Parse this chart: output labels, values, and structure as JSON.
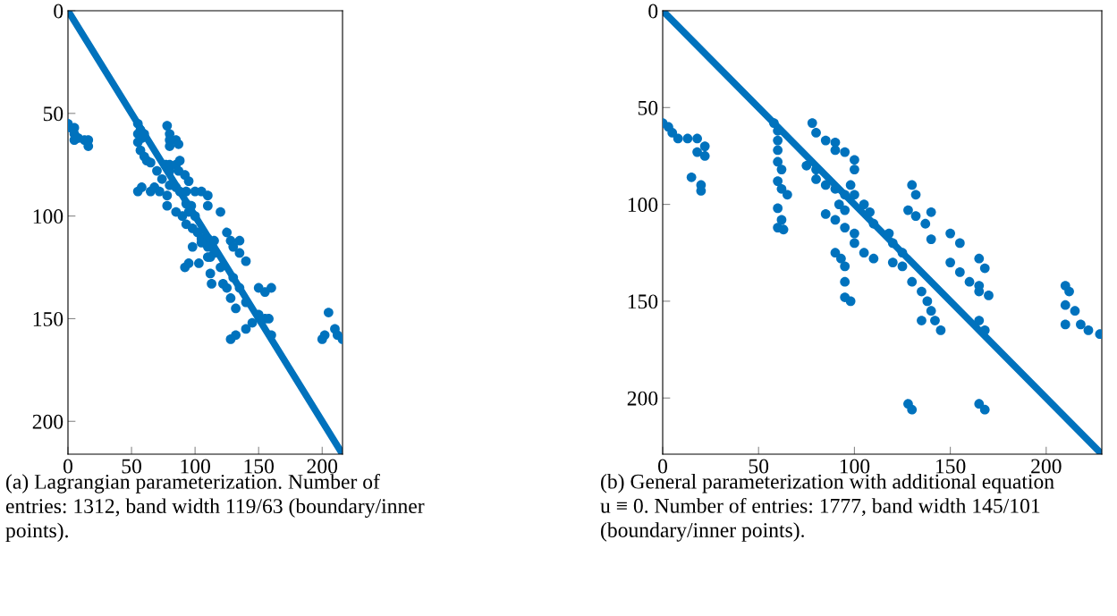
{
  "chart_data": [
    {
      "type": "scatter",
      "xlim": [
        0,
        216
      ],
      "ylim": [
        216,
        0
      ],
      "xticks": [
        0,
        50,
        100,
        150,
        200
      ],
      "yticks": [
        0,
        50,
        100,
        150,
        200
      ],
      "annotations": [
        "(a) Lagrangian parameterization. Number of entries: 1312, band width 119/63 (boundary/inner points)."
      ],
      "series": [
        {
          "type": "line",
          "color": "#0072bd",
          "x": [
            0,
            216
          ],
          "values": [
            0,
            216
          ]
        },
        {
          "marker": "circle",
          "color": "#0072bd",
          "x": [
            0,
            2,
            5,
            5,
            5,
            8,
            13,
            16,
            16,
            55,
            57,
            55,
            58,
            60,
            55,
            57,
            60,
            62,
            65,
            70,
            74,
            78,
            80,
            80,
            80,
            85,
            87,
            77,
            80,
            80,
            85,
            87,
            55,
            58,
            65,
            68,
            72,
            78,
            78,
            80,
            85,
            88,
            93,
            93,
            95,
            97,
            88,
            92,
            95,
            100,
            105,
            110,
            110,
            85,
            90,
            93,
            98,
            100,
            102,
            105,
            110,
            110,
            115,
            115,
            112,
            92,
            95,
            98,
            103,
            120,
            125,
            128,
            130,
            135,
            135,
            140,
            105,
            110,
            112,
            113,
            120,
            122,
            125,
            130,
            128,
            132,
            135,
            128,
            132,
            140,
            140,
            145,
            150,
            155,
            150,
            155,
            160,
            158,
            160,
            200,
            202,
            205,
            210,
            212,
            216
          ],
          "values": [
            55,
            57,
            57,
            60,
            63,
            62,
            63,
            63,
            66,
            55,
            58,
            60,
            62,
            60,
            64,
            68,
            71,
            73,
            74,
            78,
            82,
            56,
            60,
            63,
            66,
            63,
            65,
            75,
            75,
            78,
            75,
            78,
            88,
            86,
            88,
            86,
            88,
            90,
            95,
            85,
            86,
            88,
            88,
            94,
            98,
            95,
            73,
            80,
            83,
            88,
            88,
            90,
            95,
            98,
            100,
            104,
            106,
            100,
            108,
            111,
            111,
            115,
            112,
            118,
            120,
            125,
            123,
            115,
            123,
            98,
            108,
            112,
            115,
            112,
            118,
            122,
            113,
            120,
            128,
            133,
            125,
            133,
            135,
            130,
            140,
            145,
            135,
            160,
            158,
            142,
            155,
            152,
            148,
            150,
            135,
            137,
            135,
            150,
            158,
            160,
            158,
            147,
            155,
            158,
            160
          ]
        }
      ]
    },
    {
      "type": "scatter",
      "xlim": [
        0,
        229
      ],
      "ylim": [
        229,
        0
      ],
      "xticks": [
        0,
        50,
        100,
        150,
        200
      ],
      "yticks": [
        0,
        50,
        100,
        150,
        200
      ],
      "annotations": [
        "(b) General parameterization with additional equation u ≡ 0. Number of entries: 1777, band width 145/101 (boundary/inner points)."
      ],
      "series": [
        {
          "type": "line",
          "color": "#0072bd",
          "x": [
            0,
            229
          ],
          "values": [
            0,
            229
          ]
        },
        {
          "marker": "circle",
          "color": "#0072bd",
          "x": [
            0,
            3,
            5,
            8,
            13,
            18,
            22,
            18,
            22,
            15,
            20,
            20,
            58,
            60,
            60,
            60,
            60,
            62,
            60,
            62,
            65,
            60,
            62,
            60,
            63,
            78,
            80,
            85,
            90,
            90,
            95,
            100,
            100,
            75,
            80,
            80,
            85,
            90,
            95,
            92,
            95,
            98,
            100,
            105,
            108,
            110,
            85,
            90,
            95,
            100,
            100,
            105,
            110,
            90,
            93,
            95,
            95,
            95,
            98,
            118,
            120,
            125,
            120,
            125,
            130,
            132,
            128,
            132,
            140,
            137,
            140,
            130,
            135,
            138,
            140,
            135,
            142,
            145,
            150,
            155,
            150,
            155,
            160,
            165,
            165,
            168,
            165,
            170,
            165,
            168,
            128,
            130,
            165,
            168,
            210,
            212,
            210,
            215,
            210,
            218,
            222,
            228
          ],
          "values": [
            58,
            60,
            63,
            66,
            66,
            66,
            70,
            73,
            75,
            86,
            90,
            93,
            58,
            62,
            67,
            72,
            78,
            82,
            88,
            92,
            95,
            102,
            108,
            112,
            113,
            58,
            63,
            67,
            68,
            72,
            73,
            77,
            82,
            80,
            82,
            87,
            90,
            92,
            95,
            100,
            103,
            90,
            95,
            100,
            104,
            110,
            105,
            108,
            112,
            115,
            120,
            125,
            128,
            125,
            128,
            132,
            140,
            148,
            150,
            115,
            120,
            125,
            130,
            132,
            90,
            95,
            103,
            106,
            104,
            110,
            118,
            140,
            145,
            150,
            155,
            160,
            160,
            165,
            115,
            120,
            130,
            135,
            140,
            145,
            128,
            133,
            142,
            147,
            160,
            165,
            203,
            206,
            203,
            206,
            142,
            145,
            152,
            155,
            162,
            162,
            165,
            167
          ]
        }
      ]
    }
  ]
}
